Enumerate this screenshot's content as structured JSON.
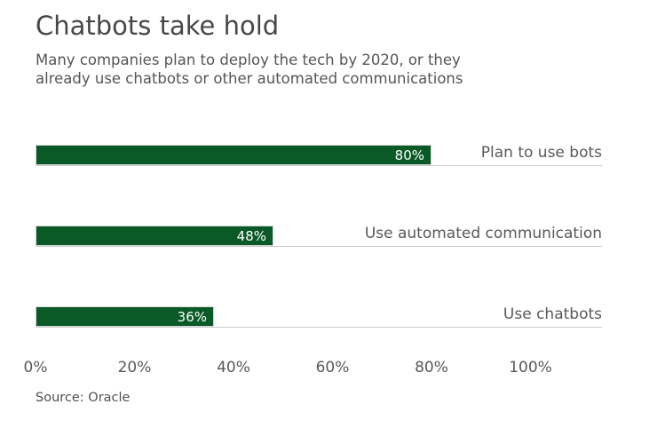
{
  "title": "Chatbots take hold",
  "subtitle": {
    "line1": "Many companies plan to deploy the tech by 2020, or they",
    "line2": "already use chatbots or other automated communications"
  },
  "source": "Source: Oracle",
  "colors": {
    "bar_green": "#0a5a28",
    "title_text": "#474747",
    "body_text": "#595959",
    "bar_value_text": "#ffffff",
    "baseline_gray": "#cccccc"
  },
  "chart_data": {
    "type": "bar",
    "orientation": "horizontal",
    "title": "Chatbots take hold",
    "subtitle": "Many companies plan to deploy the tech by 2020, or they already use chatbots or other automated communications",
    "source": "Source: Oracle",
    "categories": [
      "Plan to use bots",
      "Use automated communication",
      "Use chatbots"
    ],
    "values": [
      80,
      48,
      36
    ],
    "value_labels": [
      "80%",
      "48%",
      "36%"
    ],
    "x_ticks": [
      0,
      20,
      40,
      60,
      80,
      100
    ],
    "x_tick_labels": [
      "0%",
      "20%",
      "40%",
      "60%",
      "80%",
      "100%"
    ],
    "xlim": [
      0,
      100
    ],
    "bar_color": "#0a5a28",
    "grid": false,
    "legend": false,
    "value_label_position": "inside-end",
    "category_label_position": "right"
  }
}
